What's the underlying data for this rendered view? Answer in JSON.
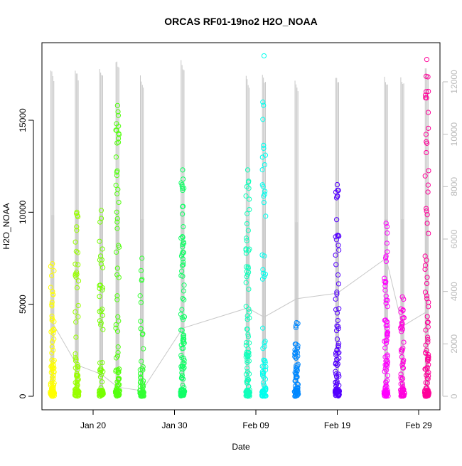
{
  "chart_data": {
    "type": "scatter",
    "title": "ORCAS RF01-19no2 H2O_NOAA",
    "xlabel": "Date",
    "ylabel": "H2O_NOAA",
    "x_ticks": [
      "Jan 20",
      "Jan 30",
      "Feb 09",
      "Feb 19",
      "Feb 29"
    ],
    "y_ticks": [
      "0",
      "5000",
      "10000",
      "15000"
    ],
    "y2_ticks": [
      "0",
      "2000",
      "4000",
      "6000",
      "8000",
      "10000",
      "12000"
    ],
    "ylim": [
      0,
      18500
    ],
    "y2lim": [
      0,
      12800
    ],
    "grid": false,
    "legend": "none",
    "flights": [
      {
        "date": "2016-01-15",
        "color": "#ffff00",
        "h2o_range": [
          0,
          7200
        ],
        "gray_max": 17900,
        "bands": [
          [
            0,
            2600,
            38
          ],
          [
            2600,
            7200,
            22
          ]
        ]
      },
      {
        "date": "2016-01-18",
        "color": "#99ff00",
        "h2o_range": [
          0,
          10000
        ],
        "gray_max": 17900,
        "bands": [
          [
            0,
            1500,
            22
          ],
          [
            1500,
            10000,
            30
          ]
        ]
      },
      {
        "date": "2016-01-21",
        "color": "#77ff00",
        "h2o_range": [
          0,
          10100
        ],
        "gray_max": 18000,
        "bands": [
          [
            0,
            1500,
            16
          ],
          [
            1500,
            10100,
            26
          ]
        ]
      },
      {
        "date": "2016-01-23",
        "color": "#55ff11",
        "h2o_range": [
          0,
          15800
        ],
        "gray_max": 18400,
        "bands": [
          [
            0,
            1500,
            22
          ],
          [
            1500,
            15800,
            40
          ]
        ]
      },
      {
        "date": "2016-01-26",
        "color": "#33ff33",
        "h2o_range": [
          0,
          7500
        ],
        "gray_max": 17500,
        "bands": [
          [
            0,
            1200,
            16
          ],
          [
            1200,
            7500,
            18
          ]
        ]
      },
      {
        "date": "2016-01-31",
        "color": "#11ff66",
        "h2o_range": [
          0,
          12300
        ],
        "gray_max": 18300,
        "bands": [
          [
            0,
            3000,
            34
          ],
          [
            3000,
            12300,
            48
          ]
        ]
      },
      {
        "date": "2016-02-08",
        "color": "#11ffbb",
        "h2o_range": [
          0,
          12300
        ],
        "gray_max": 17500,
        "bands": [
          [
            0,
            2500,
            32
          ],
          [
            2500,
            12300,
            40
          ]
        ]
      },
      {
        "date": "2016-02-10",
        "color": "#00ffee",
        "h2o_range": [
          0,
          18500
        ],
        "gray_max": 17600,
        "bands": [
          [
            0,
            2000,
            26
          ],
          [
            2000,
            16000,
            28
          ]
        ]
      },
      {
        "date": "2016-02-14",
        "color": "#0088ff",
        "h2o_range": [
          0,
          4000
        ],
        "gray_max": 17200,
        "bands": [
          [
            0,
            2200,
            38
          ],
          [
            2200,
            4000,
            14
          ]
        ]
      },
      {
        "date": "2016-02-19",
        "color": "#5500ff",
        "h2o_range": [
          0,
          11500
        ],
        "gray_max": 17600,
        "bands": [
          [
            0,
            3000,
            40
          ],
          [
            3000,
            11500,
            30
          ]
        ]
      },
      {
        "date": "2016-02-25",
        "color": "#ff00ff",
        "h2o_range": [
          0,
          9400
        ],
        "gray_max": 17500,
        "bands": [
          [
            0,
            3800,
            36
          ],
          [
            3800,
            9400,
            24
          ]
        ]
      },
      {
        "date": "2016-02-27",
        "color": "#ff00dd",
        "h2o_range": [
          0,
          5400
        ],
        "gray_max": 17500,
        "bands": [
          [
            0,
            5400,
            42
          ]
        ]
      },
      {
        "date": "2016-03-01",
        "color": "#ff0099",
        "h2o_range": [
          0,
          18300
        ],
        "gray_max": 18000,
        "bands": [
          [
            0,
            3000,
            36
          ],
          [
            3000,
            18300,
            40
          ]
        ]
      }
    ],
    "connector_points": [
      [
        "2016-01-15",
        4000
      ],
      [
        "2016-01-18",
        1700
      ],
      [
        "2016-01-21",
        1200
      ],
      [
        "2016-01-23",
        500
      ],
      [
        "2016-01-26",
        300
      ],
      [
        "2016-01-31",
        3700
      ],
      [
        "2016-02-08",
        4800
      ],
      [
        "2016-02-10",
        4300
      ],
      [
        "2016-02-14",
        5300
      ],
      [
        "2016-02-19",
        5600
      ],
      [
        "2016-02-25",
        7500
      ],
      [
        "2016-02-27",
        3800
      ],
      [
        "2016-03-01",
        4600
      ]
    ],
    "secondary_series": {
      "color": "#c8c8c8",
      "axis": "right"
    }
  }
}
